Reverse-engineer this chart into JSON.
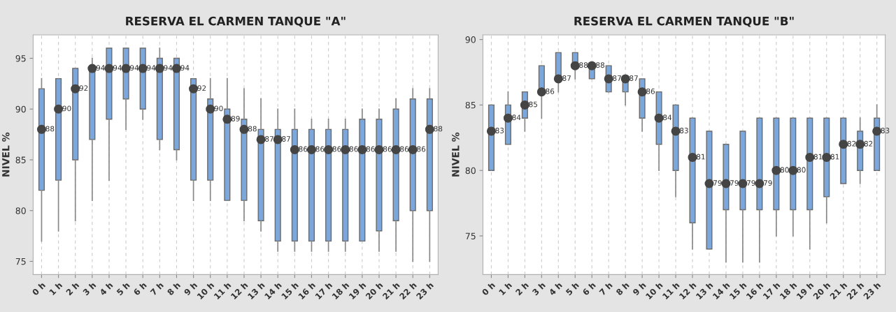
{
  "chart_data": [
    {
      "type": "box",
      "title": "RESERVA EL CARMEN TANQUE \"A\"",
      "ylabel": "NIVEL %",
      "categories": [
        "0 h",
        "1 h",
        "2 h",
        "3 h",
        "4 h",
        "5 h",
        "6 h",
        "7 h",
        "8 h",
        "9 h",
        "10 h",
        "11 h",
        "12 h",
        "13 h",
        "14 h",
        "15 h",
        "16 h",
        "17 h",
        "18 h",
        "19 h",
        "20 h",
        "21 h",
        "22 h",
        "23 h"
      ],
      "ylim": [
        73.7,
        97.3
      ],
      "yticks": [
        75,
        80,
        85,
        90,
        95
      ],
      "grid": "x",
      "data_labels": true,
      "color": "#7ba7dc",
      "boxes": [
        {
          "low": 77,
          "q1": 82,
          "median": 88,
          "q3": 92,
          "high": 93
        },
        {
          "low": 78,
          "q1": 83,
          "median": 90,
          "q3": 93,
          "high": 93
        },
        {
          "low": 79,
          "q1": 85,
          "median": 92,
          "q3": 94,
          "high": 94
        },
        {
          "low": 81,
          "q1": 87,
          "median": 94,
          "q3": 94,
          "high": 95
        },
        {
          "low": 83,
          "q1": 89,
          "median": 94,
          "q3": 96,
          "high": 96
        },
        {
          "low": 88,
          "q1": 91,
          "median": 94,
          "q3": 96,
          "high": 96
        },
        {
          "low": 89,
          "q1": 90,
          "median": 94,
          "q3": 96,
          "high": 96
        },
        {
          "low": 86,
          "q1": 87,
          "median": 94,
          "q3": 95,
          "high": 96
        },
        {
          "low": 85,
          "q1": 86,
          "median": 94,
          "q3": 95,
          "high": 95
        },
        {
          "low": 81,
          "q1": 83,
          "median": 92,
          "q3": 93,
          "high": 93
        },
        {
          "low": 81,
          "q1": 83,
          "median": 90,
          "q3": 91,
          "high": 93
        },
        {
          "low": 81,
          "q1": 81,
          "median": 89,
          "q3": 90,
          "high": 93
        },
        {
          "low": 79,
          "q1": 81,
          "median": 88,
          "q3": 89,
          "high": 92
        },
        {
          "low": 78,
          "q1": 79,
          "median": 87,
          "q3": 88,
          "high": 91
        },
        {
          "low": 76,
          "q1": 77,
          "median": 87,
          "q3": 88,
          "high": 90
        },
        {
          "low": 76,
          "q1": 77,
          "median": 86,
          "q3": 88,
          "high": 90
        },
        {
          "low": 76,
          "q1": 77,
          "median": 86,
          "q3": 88,
          "high": 89
        },
        {
          "low": 76,
          "q1": 77,
          "median": 86,
          "q3": 88,
          "high": 89
        },
        {
          "low": 76,
          "q1": 77,
          "median": 86,
          "q3": 88,
          "high": 89
        },
        {
          "low": 77,
          "q1": 77,
          "median": 86,
          "q3": 89,
          "high": 90
        },
        {
          "low": 76,
          "q1": 78,
          "median": 86,
          "q3": 89,
          "high": 90
        },
        {
          "low": 76,
          "q1": 79,
          "median": 86,
          "q3": 90,
          "high": 91
        },
        {
          "low": 75,
          "q1": 80,
          "median": 86,
          "q3": 91,
          "high": 92
        },
        {
          "low": 75,
          "q1": 80,
          "median": 88,
          "q3": 91,
          "high": 92
        }
      ],
      "series": [
        {
          "type": "scatter",
          "color": "#444444",
          "x": [
            "0 h",
            "1 h",
            "2 h",
            "3 h",
            "4 h",
            "5 h",
            "6 h",
            "7 h",
            "8 h",
            "9 h",
            "10 h",
            "11 h",
            "12 h",
            "13 h",
            "14 h",
            "15 h",
            "16 h",
            "17 h",
            "18 h",
            "19 h",
            "20 h",
            "21 h",
            "22 h",
            "23 h"
          ],
          "values": [
            88,
            90,
            92,
            94,
            94,
            94,
            94,
            94,
            94,
            92,
            90,
            89,
            88,
            87,
            87,
            86,
            86,
            86,
            86,
            86,
            86,
            86,
            86,
            88
          ]
        }
      ]
    },
    {
      "type": "box",
      "title": "RESERVA EL CARMEN TANQUE \"B\"",
      "ylabel": "NIVEL %",
      "categories": [
        "0 h",
        "1 h",
        "2 h",
        "3 h",
        "4 h",
        "5 h",
        "6 h",
        "7 h",
        "8 h",
        "9 h",
        "10 h",
        "11 h",
        "12 h",
        "13 h",
        "14 h",
        "15 h",
        "16 h",
        "17 h",
        "18 h",
        "19 h",
        "20 h",
        "21 h",
        "22 h",
        "23 h"
      ],
      "ylim": [
        72.05,
        90.35
      ],
      "yticks": [
        75,
        80,
        85,
        90
      ],
      "grid": "x",
      "data_labels": true,
      "color": "#7ba7dc",
      "boxes": [
        {
          "low": 80,
          "q1": 80,
          "median": 83,
          "q3": 85,
          "high": 85
        },
        {
          "low": 82,
          "q1": 82,
          "median": 84,
          "q3": 85,
          "high": 86
        },
        {
          "low": 83,
          "q1": 84,
          "median": 85,
          "q3": 86,
          "high": 86
        },
        {
          "low": 84,
          "q1": 86,
          "median": 86,
          "q3": 88,
          "high": 88
        },
        {
          "low": 86,
          "q1": 87,
          "median": 87,
          "q3": 89,
          "high": 89
        },
        {
          "low": 87,
          "q1": 88,
          "median": 88,
          "q3": 89,
          "high": 89
        },
        {
          "low": 87,
          "q1": 87,
          "median": 88,
          "q3": 88,
          "high": 88
        },
        {
          "low": 86,
          "q1": 86,
          "median": 87,
          "q3": 88,
          "high": 88
        },
        {
          "low": 85,
          "q1": 86,
          "median": 87,
          "q3": 87,
          "high": 87
        },
        {
          "low": 83,
          "q1": 84,
          "median": 86,
          "q3": 87,
          "high": 87
        },
        {
          "low": 80,
          "q1": 82,
          "median": 84,
          "q3": 86,
          "high": 86
        },
        {
          "low": 78,
          "q1": 80,
          "median": 83,
          "q3": 85,
          "high": 85
        },
        {
          "low": 74,
          "q1": 76,
          "median": 81,
          "q3": 84,
          "high": 84
        },
        {
          "low": 74,
          "q1": 74,
          "median": 79,
          "q3": 83,
          "high": 83
        },
        {
          "low": 73,
          "q1": 77,
          "median": 79,
          "q3": 82,
          "high": 82
        },
        {
          "low": 73,
          "q1": 77,
          "median": 79,
          "q3": 83,
          "high": 83
        },
        {
          "low": 73,
          "q1": 77,
          "median": 79,
          "q3": 84,
          "high": 84
        },
        {
          "low": 75,
          "q1": 77,
          "median": 80,
          "q3": 84,
          "high": 84
        },
        {
          "low": 75,
          "q1": 77,
          "median": 80,
          "q3": 84,
          "high": 84
        },
        {
          "low": 74,
          "q1": 77,
          "median": 81,
          "q3": 84,
          "high": 84
        },
        {
          "low": 76,
          "q1": 78,
          "median": 81,
          "q3": 84,
          "high": 84
        },
        {
          "low": 79,
          "q1": 79,
          "median": 82,
          "q3": 84,
          "high": 84
        },
        {
          "low": 79,
          "q1": 80,
          "median": 82,
          "q3": 83,
          "high": 84
        },
        {
          "low": 80,
          "q1": 80,
          "median": 83,
          "q3": 84,
          "high": 85
        }
      ],
      "series": [
        {
          "type": "scatter",
          "color": "#444444",
          "x": [
            "0 h",
            "1 h",
            "2 h",
            "3 h",
            "4 h",
            "5 h",
            "6 h",
            "7 h",
            "8 h",
            "9 h",
            "10 h",
            "11 h",
            "12 h",
            "13 h",
            "14 h",
            "15 h",
            "16 h",
            "17 h",
            "18 h",
            "19 h",
            "20 h",
            "21 h",
            "22 h",
            "23 h"
          ],
          "values": [
            83,
            84,
            85,
            86,
            87,
            88,
            88,
            87,
            87,
            86,
            84,
            83,
            81,
            79,
            79,
            79,
            79,
            80,
            80,
            81,
            81,
            82,
            82,
            83
          ]
        }
      ]
    }
  ]
}
